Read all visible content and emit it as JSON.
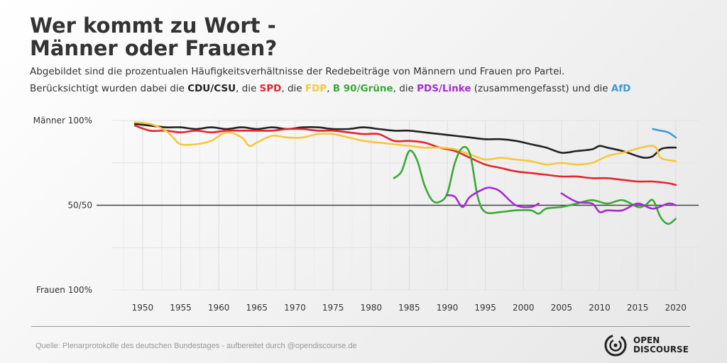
{
  "header": {
    "title_line1": "Wer kommt zu Wort -",
    "title_line2": "Männer oder Frauen?",
    "subtitle_line1": "Abgebildet sind die prozentualen Häufigkeitsverhältnisse der Redebeiträge von Männern und Frauen pro Partei.",
    "subtitle_line2": {
      "lead": "Berücksichtigt wurden dabei die ",
      "p1": "CDU/CSU",
      "sep1": ", die ",
      "p2": "SPD",
      "sep2": ", die ",
      "p3": "FDP",
      "sep3": ", ",
      "p4": "B 90/Grüne",
      "sep4": ", die ",
      "p5": "PDS/Linke",
      "sep5": " (zusammengefasst) und die ",
      "p6": "AfD"
    }
  },
  "footer": {
    "source": "Quelle: Plenarprotokolle des deutschen Bundestages - aufbereitet durch @opendiscourse.de",
    "logo_line1": "OPEN",
    "logo_line2": "DISCOURSE"
  },
  "colors": {
    "CDU/CSU": "#222222",
    "SPD": "#e3262f",
    "FDP": "#f5c83a",
    "B 90/Grüne": "#3aa935",
    "PDS/Linke": "#a52bd1",
    "AfD": "#3d9bd6"
  },
  "chart_data": {
    "type": "line",
    "xlim": [
      1946,
      2023
    ],
    "ylim": [
      0,
      100
    ],
    "x_ticks": [
      1950,
      1955,
      1960,
      1965,
      1970,
      1975,
      1980,
      1985,
      1990,
      1995,
      2000,
      2005,
      2010,
      2015,
      2020
    ],
    "y_ticks": [
      {
        "value": 100,
        "label": "Männer 100%"
      },
      {
        "value": 50,
        "label": "50/50"
      },
      {
        "value": 0,
        "label": "Frauen 100%"
      }
    ],
    "reference_line": 50,
    "grid": true,
    "series": [
      {
        "name": "CDU/CSU",
        "points": [
          [
            1949,
            98
          ],
          [
            1951,
            97
          ],
          [
            1953,
            96
          ],
          [
            1955,
            96
          ],
          [
            1957,
            95
          ],
          [
            1959,
            96
          ],
          [
            1961,
            95
          ],
          [
            1963,
            96
          ],
          [
            1965,
            95
          ],
          [
            1967,
            96
          ],
          [
            1969,
            95
          ],
          [
            1971,
            96
          ],
          [
            1973,
            96
          ],
          [
            1975,
            95
          ],
          [
            1977,
            95
          ],
          [
            1979,
            96
          ],
          [
            1981,
            95
          ],
          [
            1983,
            94
          ],
          [
            1985,
            94
          ],
          [
            1987,
            93
          ],
          [
            1989,
            92
          ],
          [
            1991,
            91
          ],
          [
            1993,
            90
          ],
          [
            1995,
            89
          ],
          [
            1997,
            89
          ],
          [
            1999,
            88
          ],
          [
            2001,
            86
          ],
          [
            2003,
            84
          ],
          [
            2005,
            81
          ],
          [
            2007,
            82
          ],
          [
            2009,
            83
          ],
          [
            2010,
            85
          ],
          [
            2011,
            84
          ],
          [
            2013,
            82
          ],
          [
            2015,
            79
          ],
          [
            2016,
            78
          ],
          [
            2017,
            79
          ],
          [
            2018,
            83
          ],
          [
            2019,
            84
          ],
          [
            2020,
            84
          ]
        ]
      },
      {
        "name": "SPD",
        "points": [
          [
            1949,
            97
          ],
          [
            1951,
            94
          ],
          [
            1953,
            94
          ],
          [
            1955,
            93
          ],
          [
            1957,
            94
          ],
          [
            1959,
            93
          ],
          [
            1961,
            94
          ],
          [
            1963,
            94
          ],
          [
            1965,
            94
          ],
          [
            1967,
            94
          ],
          [
            1969,
            95
          ],
          [
            1971,
            95
          ],
          [
            1973,
            94
          ],
          [
            1975,
            94
          ],
          [
            1977,
            93
          ],
          [
            1979,
            92
          ],
          [
            1981,
            92
          ],
          [
            1983,
            88
          ],
          [
            1985,
            88
          ],
          [
            1987,
            87
          ],
          [
            1989,
            84
          ],
          [
            1991,
            82
          ],
          [
            1993,
            78
          ],
          [
            1995,
            74
          ],
          [
            1997,
            72
          ],
          [
            1999,
            70
          ],
          [
            2001,
            69
          ],
          [
            2003,
            68
          ],
          [
            2005,
            67
          ],
          [
            2007,
            67
          ],
          [
            2009,
            66
          ],
          [
            2011,
            66
          ],
          [
            2013,
            65
          ],
          [
            2015,
            64
          ],
          [
            2017,
            64
          ],
          [
            2019,
            63
          ],
          [
            2020,
            62
          ]
        ]
      },
      {
        "name": "FDP",
        "points": [
          [
            1949,
            99
          ],
          [
            1951,
            98
          ],
          [
            1953,
            94
          ],
          [
            1954,
            90
          ],
          [
            1955,
            86
          ],
          [
            1957,
            86
          ],
          [
            1959,
            88
          ],
          [
            1961,
            93
          ],
          [
            1963,
            90
          ],
          [
            1964,
            85
          ],
          [
            1965,
            87
          ],
          [
            1967,
            91
          ],
          [
            1969,
            90
          ],
          [
            1971,
            90
          ],
          [
            1973,
            92
          ],
          [
            1975,
            92
          ],
          [
            1977,
            90
          ],
          [
            1979,
            88
          ],
          [
            1981,
            87
          ],
          [
            1983,
            86
          ],
          [
            1985,
            85
          ],
          [
            1987,
            84
          ],
          [
            1989,
            84
          ],
          [
            1991,
            83
          ],
          [
            1993,
            80
          ],
          [
            1995,
            77
          ],
          [
            1997,
            78
          ],
          [
            1999,
            77
          ],
          [
            2001,
            76
          ],
          [
            2003,
            74
          ],
          [
            2005,
            75
          ],
          [
            2007,
            74
          ],
          [
            2009,
            75
          ],
          [
            2011,
            79
          ],
          [
            2013,
            81
          ],
          [
            2017,
            85
          ],
          [
            2018,
            78
          ],
          [
            2020,
            76
          ]
        ]
      },
      {
        "name": "B 90/Grüne",
        "points": [
          [
            1983,
            66
          ],
          [
            1984,
            70
          ],
          [
            1985,
            82
          ],
          [
            1986,
            77
          ],
          [
            1987,
            62
          ],
          [
            1988,
            53
          ],
          [
            1989,
            52
          ],
          [
            1990,
            57
          ],
          [
            1991,
            75
          ],
          [
            1992,
            84
          ],
          [
            1993,
            80
          ],
          [
            1994,
            55
          ],
          [
            1995,
            46
          ],
          [
            1997,
            46
          ],
          [
            1999,
            47
          ],
          [
            2001,
            47
          ],
          [
            2002,
            45
          ],
          [
            2003,
            48
          ],
          [
            2005,
            49
          ],
          [
            2007,
            51
          ],
          [
            2009,
            53
          ],
          [
            2011,
            51
          ],
          [
            2013,
            53
          ],
          [
            2015,
            49
          ],
          [
            2016,
            50
          ],
          [
            2017,
            53
          ],
          [
            2018,
            43
          ],
          [
            2019,
            39
          ],
          [
            2020,
            42
          ]
        ]
      },
      {
        "name": "PDS/Linke",
        "points": [
          [
            1990,
            56
          ],
          [
            1991,
            55
          ],
          [
            1992,
            49
          ],
          [
            1993,
            55
          ],
          [
            1995,
            60
          ],
          [
            1996,
            60
          ],
          [
            1997,
            58
          ],
          [
            1999,
            50
          ],
          [
            2001,
            49
          ],
          [
            2002,
            51
          ]
        ]
      },
      {
        "name": "PDS/Linke",
        "points": [
          [
            2005,
            57
          ],
          [
            2007,
            52
          ],
          [
            2009,
            51
          ],
          [
            2010,
            46
          ],
          [
            2011,
            47
          ],
          [
            2013,
            47
          ],
          [
            2015,
            51
          ],
          [
            2017,
            48
          ],
          [
            2019,
            51
          ],
          [
            2020,
            50
          ]
        ]
      },
      {
        "name": "AfD",
        "points": [
          [
            2017,
            95
          ],
          [
            2018,
            94
          ],
          [
            2019,
            93
          ],
          [
            2020,
            90
          ]
        ]
      }
    ]
  }
}
